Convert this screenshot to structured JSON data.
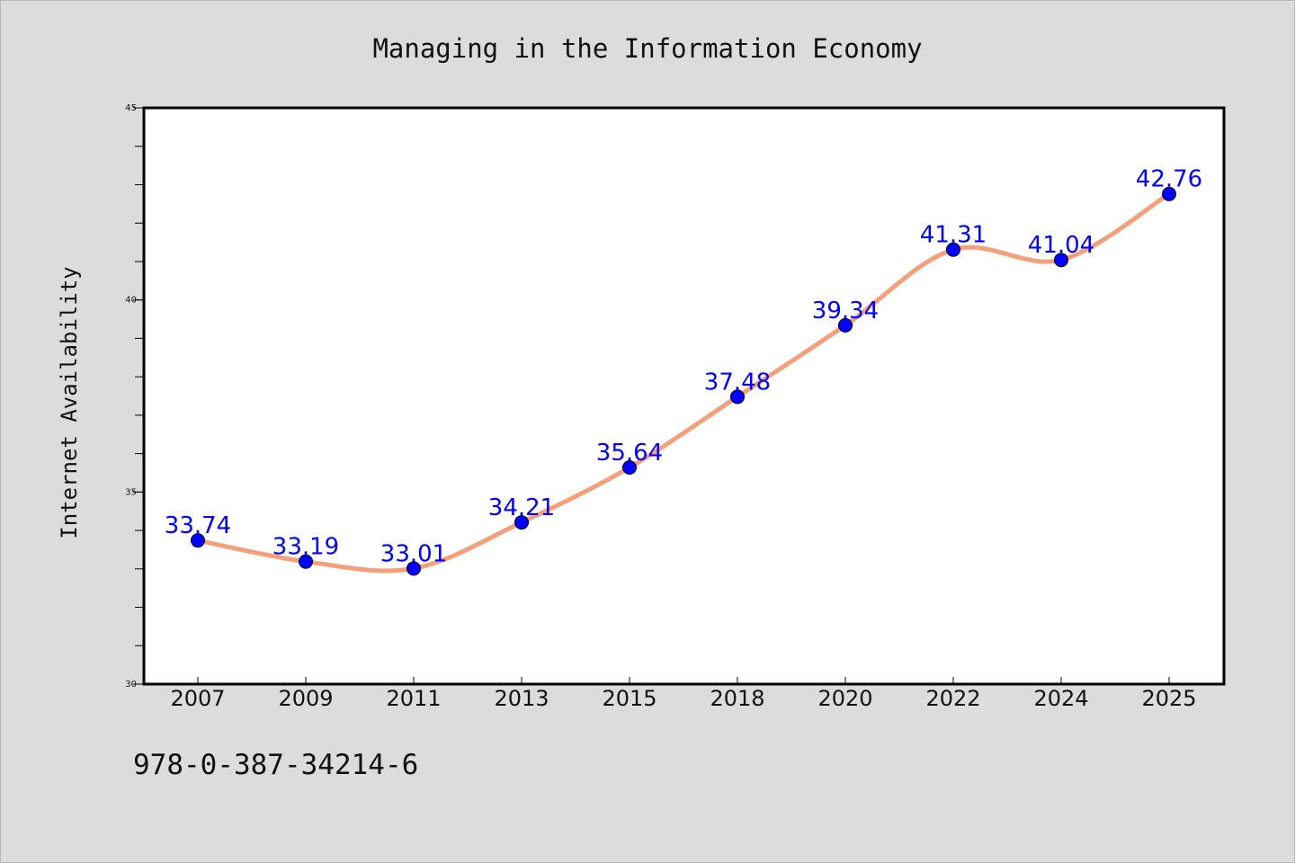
{
  "chart_data": {
    "type": "line",
    "title": "Managing in the Information Economy",
    "xlabel": "",
    "ylabel": "Internet Availability",
    "categories": [
      "2007",
      "2009",
      "2011",
      "2013",
      "2015",
      "2018",
      "2020",
      "2022",
      "2024",
      "2025"
    ],
    "series": [
      {
        "values": [
          33.74,
          33.19,
          33.01,
          34.21,
          35.64,
          37.48,
          39.34,
          41.31,
          41.04,
          42.76
        ]
      }
    ],
    "data_labels": [
      "33.74",
      "33.19",
      "33.01",
      "34.21",
      "35.64",
      "37.48",
      "39.34",
      "41.31",
      "41.04",
      "42.76"
    ],
    "ylim": [
      30,
      45
    ],
    "yticks": [
      30,
      35,
      40,
      45
    ],
    "grid": false,
    "line_color": "#f4a07a",
    "marker_color": "#0000ff",
    "label_color": "#0000ff",
    "plot_background": "#ffffff",
    "page_background": "#dcdcdc"
  },
  "footer": {
    "text": "978-0-387-34214-6"
  }
}
